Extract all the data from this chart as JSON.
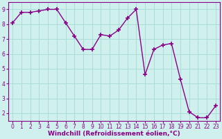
{
  "x": [
    0,
    1,
    2,
    3,
    4,
    5,
    6,
    7,
    8,
    9,
    10,
    11,
    12,
    13,
    14,
    15,
    16,
    17,
    18,
    19,
    20,
    21,
    22,
    23
  ],
  "y": [
    8.1,
    8.8,
    8.8,
    8.9,
    9.0,
    9.0,
    8.1,
    7.2,
    6.3,
    6.3,
    7.3,
    7.2,
    7.6,
    8.4,
    9.0,
    4.6,
    6.3,
    6.6,
    6.7,
    4.3,
    2.1,
    1.7,
    1.7,
    2.5
  ],
  "line_color": "#880088",
  "marker": "+",
  "marker_size": 4,
  "marker_lw": 1.2,
  "line_width": 1.0,
  "bg_color": "#cff0ec",
  "grid_color": "#aaddd8",
  "xlabel": "Windchill (Refroidissement éolien,°C)",
  "ylabel": "",
  "ylim": [
    1.5,
    9.5
  ],
  "xlim": [
    -0.5,
    23.5
  ],
  "yticks": [
    2,
    3,
    4,
    5,
    6,
    7,
    8,
    9
  ],
  "xticks": [
    0,
    1,
    2,
    3,
    4,
    5,
    6,
    7,
    8,
    9,
    10,
    11,
    12,
    13,
    14,
    15,
    16,
    17,
    18,
    19,
    20,
    21,
    22,
    23
  ],
  "tick_label_color": "#880088",
  "xlabel_color": "#880088",
  "axis_color": "#880088",
  "tick_fontsize": 5.5,
  "xlabel_fontsize": 6.5
}
